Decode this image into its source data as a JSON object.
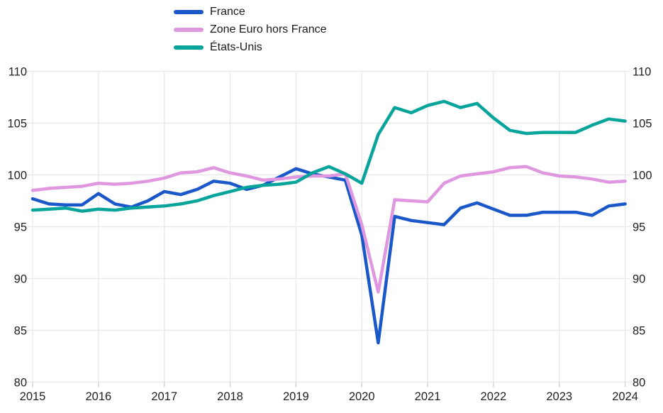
{
  "chart_data": {
    "type": "line",
    "title": "",
    "xlabel": "",
    "ylabel": "",
    "grid": true,
    "legend_position": "top-left",
    "dual_y_axis": true,
    "xlim": [
      2015,
      2024
    ],
    "ylim": [
      80,
      110
    ],
    "x_ticks": [
      2015,
      2016,
      2017,
      2018,
      2019,
      2020,
      2021,
      2022,
      2023,
      2024
    ],
    "y_ticks": [
      110,
      105,
      100,
      95,
      90,
      85,
      80
    ],
    "x_unit": "quarterly",
    "x": [
      2015.0,
      2015.25,
      2015.5,
      2015.75,
      2016.0,
      2016.25,
      2016.5,
      2016.75,
      2017.0,
      2017.25,
      2017.5,
      2017.75,
      2018.0,
      2018.25,
      2018.5,
      2018.75,
      2019.0,
      2019.25,
      2019.5,
      2019.75,
      2020.0,
      2020.25,
      2020.5,
      2020.75,
      2021.0,
      2021.25,
      2021.5,
      2021.75,
      2022.0,
      2022.25,
      2022.5,
      2022.75,
      2023.0,
      2023.25,
      2023.5,
      2023.75,
      2024.0
    ],
    "series": [
      {
        "name": "France",
        "color": "#1a57c8",
        "values": [
          97.7,
          97.2,
          97.1,
          97.1,
          98.2,
          97.2,
          96.9,
          97.5,
          98.4,
          98.1,
          98.6,
          99.4,
          99.2,
          98.6,
          99.0,
          99.8,
          100.6,
          100.1,
          99.8,
          99.5,
          94.2,
          83.8,
          96.0,
          95.6,
          95.4,
          95.2,
          96.8,
          97.3,
          96.7,
          96.1,
          96.1,
          96.4,
          96.4,
          96.4,
          96.1,
          97.0,
          97.2
        ]
      },
      {
        "name": "Zone Euro hors France",
        "color": "#df97df",
        "values": [
          98.5,
          98.7,
          98.8,
          98.9,
          99.2,
          99.1,
          99.2,
          99.4,
          99.7,
          100.2,
          100.3,
          100.7,
          100.2,
          99.9,
          99.5,
          99.6,
          99.8,
          99.9,
          99.9,
          100.1,
          95.2,
          88.7,
          97.6,
          97.5,
          97.4,
          99.2,
          99.9,
          100.1,
          100.3,
          100.7,
          100.8,
          100.2,
          99.9,
          99.8,
          99.6,
          99.3,
          99.4
        ]
      },
      {
        "name": "États-Unis",
        "color": "#07a49b",
        "values": [
          96.6,
          96.7,
          96.8,
          96.5,
          96.7,
          96.6,
          96.8,
          96.9,
          97.0,
          97.2,
          97.5,
          98.0,
          98.4,
          98.8,
          99.0,
          99.1,
          99.3,
          100.2,
          100.8,
          100.1,
          99.2,
          103.9,
          106.5,
          106.0,
          106.7,
          107.1,
          106.5,
          106.9,
          105.5,
          104.3,
          104.0,
          104.1,
          104.1,
          104.1,
          104.8,
          105.4,
          105.2
        ]
      }
    ]
  },
  "style": {
    "grid_color": "#e9e9e9",
    "tick_color": "#cfcfcf",
    "text_color": "#222222",
    "background": "#ffffff",
    "line_width": 4.5
  }
}
